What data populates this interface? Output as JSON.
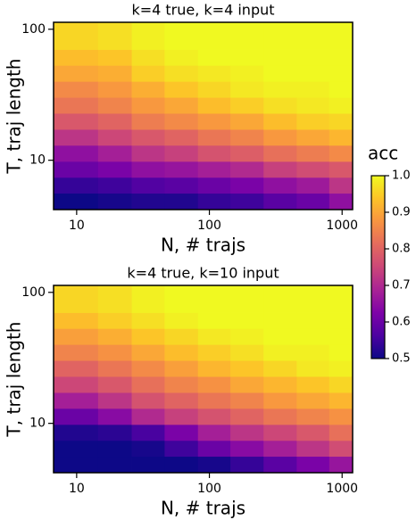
{
  "chart_data": [
    {
      "type": "heatmap",
      "title": "k=4 true, k=4 input",
      "xlabel": "N, # trajs",
      "ylabel": "T, traj length",
      "xscale": "log",
      "yscale": "log",
      "xlim": [
        6.7,
        1200
      ],
      "ylim": [
        4.2,
        113
      ],
      "xticks": [
        10,
        100,
        1000
      ],
      "yticks": [
        10,
        100
      ],
      "x_edges": [
        6.7,
        14.5,
        26,
        46,
        82,
        144,
        256,
        455,
        800,
        1200
      ],
      "y_edges": [
        4.2,
        5.6,
        7.4,
        9.8,
        13,
        17.2,
        22.8,
        30.2,
        40,
        53,
        70,
        113
      ],
      "values": [
        [
          0.5,
          0.51,
          0.52,
          0.52,
          0.54,
          0.55,
          0.58,
          0.6,
          0.65
        ],
        [
          0.54,
          0.55,
          0.57,
          0.58,
          0.6,
          0.62,
          0.65,
          0.67,
          0.72
        ],
        [
          0.6,
          0.62,
          0.65,
          0.66,
          0.68,
          0.7,
          0.74,
          0.76,
          0.78
        ],
        [
          0.65,
          0.68,
          0.72,
          0.74,
          0.77,
          0.79,
          0.82,
          0.84,
          0.86
        ],
        [
          0.72,
          0.75,
          0.78,
          0.8,
          0.83,
          0.85,
          0.88,
          0.9,
          0.92
        ],
        [
          0.78,
          0.8,
          0.84,
          0.86,
          0.88,
          0.9,
          0.93,
          0.95,
          0.96
        ],
        [
          0.83,
          0.85,
          0.88,
          0.9,
          0.93,
          0.95,
          0.97,
          0.98,
          0.99
        ],
        [
          0.86,
          0.88,
          0.91,
          0.94,
          0.96,
          0.98,
          0.99,
          0.99,
          1
        ],
        [
          0.9,
          0.91,
          0.95,
          0.97,
          0.98,
          0.99,
          1,
          1,
          1
        ],
        [
          0.93,
          0.94,
          0.97,
          0.99,
          1,
          1,
          1,
          1,
          1
        ],
        [
          0.96,
          0.97,
          0.99,
          1,
          1,
          1,
          1,
          1,
          1
        ]
      ]
    },
    {
      "type": "heatmap",
      "title": "k=4 true, k=10 input",
      "xlabel": "N, # trajs",
      "ylabel": "T, traj length",
      "xscale": "log",
      "yscale": "log",
      "xlim": [
        6.7,
        1200
      ],
      "ylim": [
        4.2,
        113
      ],
      "xticks": [
        10,
        100,
        1000
      ],
      "yticks": [
        10,
        100
      ],
      "x_edges": [
        6.7,
        14.5,
        26,
        46,
        82,
        144,
        256,
        455,
        800,
        1200
      ],
      "y_edges": [
        4.2,
        5.6,
        7.4,
        9.8,
        13,
        17.2,
        22.8,
        30.2,
        40,
        53,
        70,
        113
      ],
      "values": [
        [
          0.5,
          0.5,
          0.5,
          0.5,
          0.51,
          0.54,
          0.58,
          0.62,
          0.66
        ],
        [
          0.5,
          0.5,
          0.51,
          0.55,
          0.6,
          0.64,
          0.68,
          0.72,
          0.76
        ],
        [
          0.52,
          0.53,
          0.56,
          0.62,
          0.68,
          0.72,
          0.75,
          0.78,
          0.82
        ],
        [
          0.6,
          0.64,
          0.7,
          0.74,
          0.77,
          0.8,
          0.83,
          0.85,
          0.87
        ],
        [
          0.68,
          0.72,
          0.77,
          0.8,
          0.83,
          0.85,
          0.88,
          0.9,
          0.92
        ],
        [
          0.75,
          0.78,
          0.82,
          0.85,
          0.87,
          0.9,
          0.92,
          0.94,
          0.96
        ],
        [
          0.8,
          0.83,
          0.86,
          0.89,
          0.92,
          0.94,
          0.96,
          0.98,
          0.99
        ],
        [
          0.85,
          0.87,
          0.9,
          0.93,
          0.95,
          0.97,
          0.99,
          0.99,
          1
        ],
        [
          0.89,
          0.91,
          0.94,
          0.96,
          0.98,
          0.99,
          1,
          1,
          1
        ],
        [
          0.93,
          0.95,
          0.97,
          0.99,
          1,
          1,
          1,
          1,
          1
        ],
        [
          0.96,
          0.97,
          0.99,
          1,
          1,
          1,
          1,
          1,
          1
        ]
      ]
    }
  ],
  "colorbar": {
    "label": "acc",
    "lim": [
      0.5,
      1
    ],
    "ticks": [
      0.5,
      0.6,
      0.7,
      0.8,
      0.9,
      {
        "value": 1,
        "label": "1.0"
      }
    ],
    "colors": [
      "#0d0887",
      "#4c02a1",
      "#7e03a8",
      "#a92395",
      "#cc4778",
      "#e56b5d",
      "#f89441",
      "#fdc328",
      "#f0f921"
    ]
  }
}
